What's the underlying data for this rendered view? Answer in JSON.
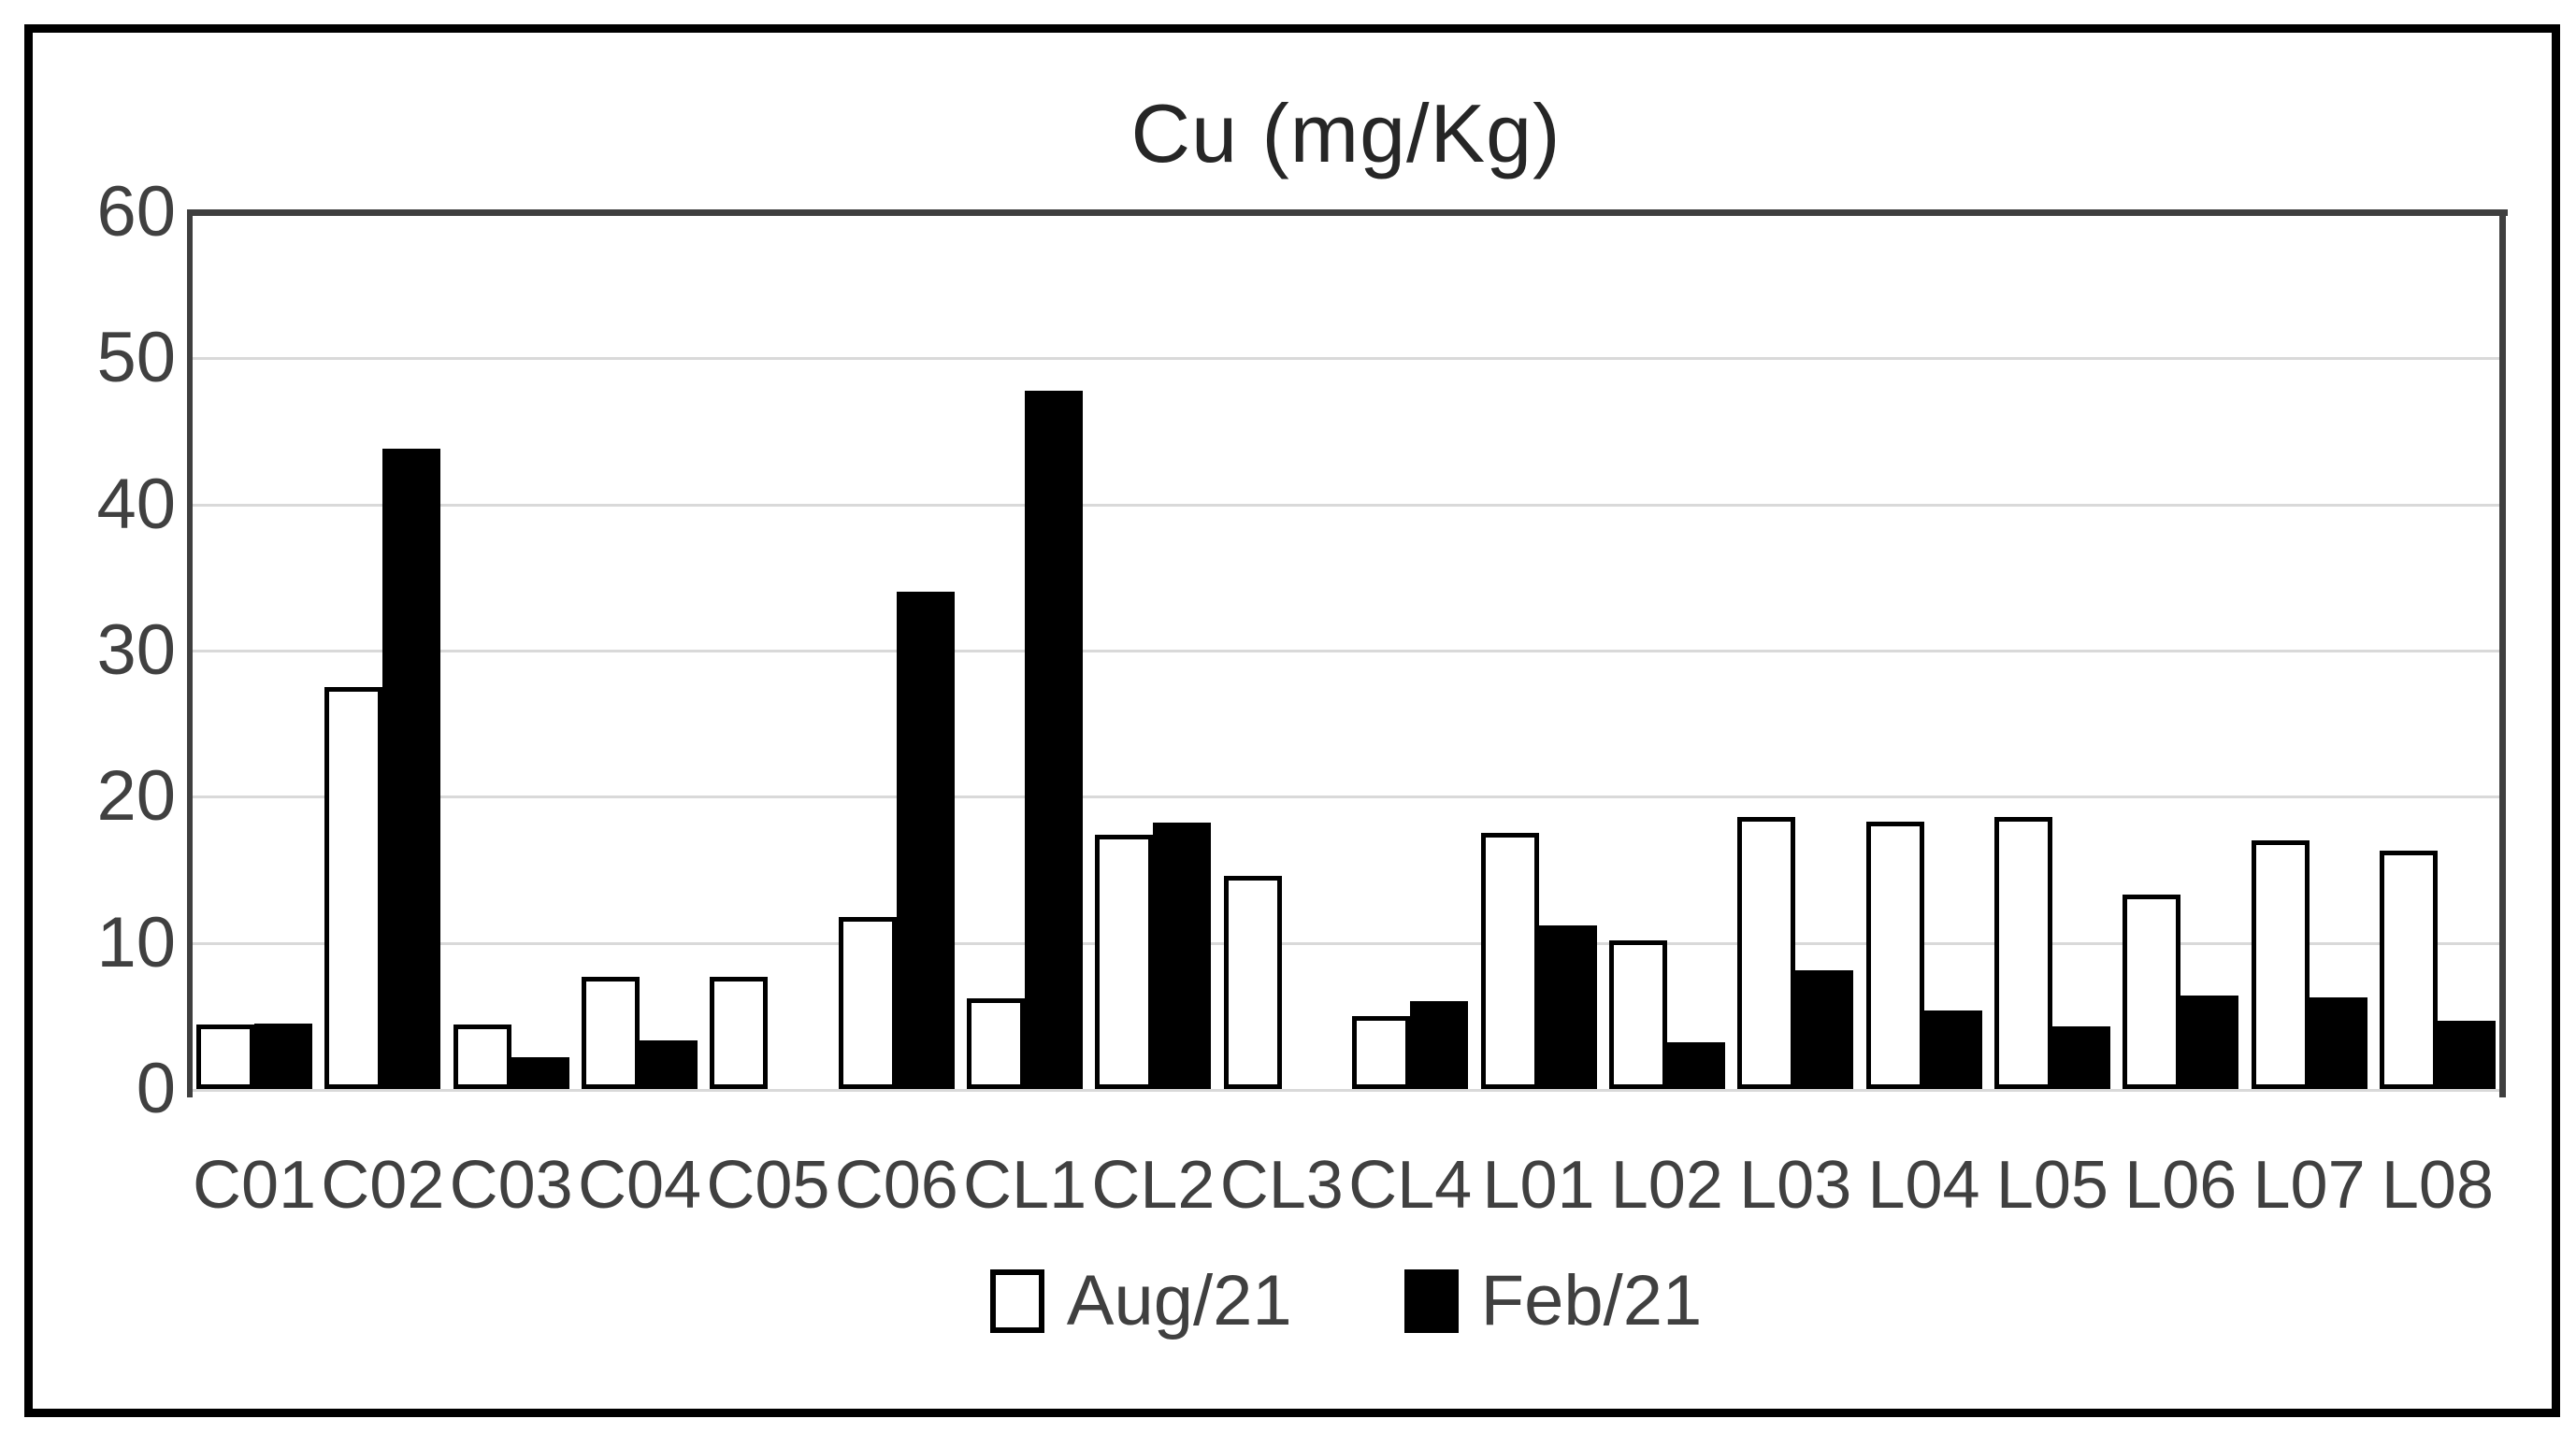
{
  "title": "Cu (mg/Kg)",
  "colors": {
    "aug_fill": "#ffffff",
    "aug_border": "#000000",
    "feb_fill": "#000000",
    "gridline": "#d9d9d9",
    "axis_text": "#404040",
    "plot_border": "#3f3f3f",
    "outer_border": "#000000"
  },
  "chart_data": {
    "type": "bar",
    "title": "Cu (mg/Kg)",
    "categories": [
      "C01",
      "C02",
      "C03",
      "C04",
      "C05",
      "C06",
      "CL1",
      "CL2",
      "CL3",
      "CL4",
      "L01",
      "L02",
      "L03",
      "L04",
      "L05",
      "L06",
      "L07",
      "L08"
    ],
    "series": [
      {
        "name": "Aug/21",
        "swatch": "white-outlined",
        "values": [
          4.4,
          27.5,
          4.4,
          7.7,
          7.7,
          11.8,
          6.2,
          17.4,
          14.6,
          5.0,
          17.5,
          10.2,
          18.6,
          18.3,
          18.6,
          13.3,
          17.0,
          16.3
        ]
      },
      {
        "name": "Feb/21",
        "swatch": "black-filled",
        "values": [
          4.5,
          43.8,
          2.2,
          3.3,
          null,
          34.0,
          47.8,
          18.2,
          null,
          6.0,
          11.2,
          3.2,
          8.1,
          5.4,
          4.3,
          6.4,
          6.3,
          4.7
        ]
      }
    ],
    "xlabel": "",
    "ylabel": "",
    "ylim": [
      0,
      60
    ],
    "yticks": [
      0,
      10,
      20,
      30,
      40,
      50,
      60
    ],
    "grid": "horizontal-major",
    "legend_position": "bottom",
    "note_missing_bars": "no Feb/21 bar shown for C05 and CL3"
  }
}
